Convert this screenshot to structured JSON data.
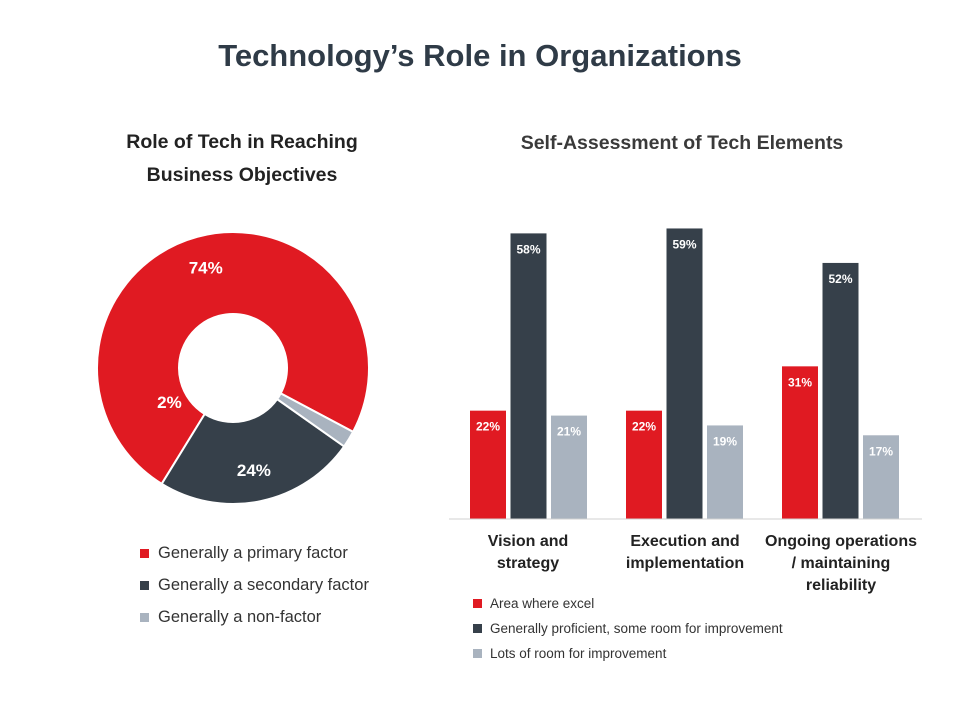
{
  "page": {
    "title": "Technology’s Role in Organizations"
  },
  "colors": {
    "red": "#e01a22",
    "dark": "#36404a",
    "light": "#a9b3bf"
  },
  "chart_data": [
    {
      "type": "pie",
      "title_lines": [
        "Role of Tech in Reaching",
        "Business Objectives"
      ],
      "donut": true,
      "slices": [
        {
          "label": "Generally a primary factor",
          "value": 74,
          "display": "74%",
          "color": "#e01a22"
        },
        {
          "label": "Generally a secondary factor",
          "value": 24,
          "display": "24%",
          "color": "#36404a"
        },
        {
          "label": "Generally a non-factor",
          "value": 2,
          "display": "2%",
          "color": "#a9b3bf"
        }
      ],
      "legend_position": "bottom"
    },
    {
      "type": "bar",
      "title": "Self-Assessment of Tech Elements",
      "categories": [
        [
          "Vision and",
          "strategy"
        ],
        [
          "Execution and",
          "implementation"
        ],
        [
          "Ongoing operations",
          "/ maintaining",
          "reliability"
        ]
      ],
      "series": [
        {
          "name": "Area where excel",
          "values": [
            22,
            22,
            31
          ],
          "labels": [
            "22%",
            "22%",
            "31%"
          ],
          "color": "#e01a22"
        },
        {
          "name": "Generally proficient, some room for improvement",
          "values": [
            58,
            59,
            52
          ],
          "labels": [
            "58%",
            "59%",
            "52%"
          ],
          "color": "#36404a"
        },
        {
          "name": "Lots of room for improvement",
          "values": [
            21,
            19,
            17
          ],
          "labels": [
            "21%",
            "19%",
            "17%"
          ],
          "color": "#a9b3bf"
        }
      ],
      "ylim": [
        0,
        60
      ],
      "grid": false,
      "legend_position": "bottom-left"
    }
  ]
}
